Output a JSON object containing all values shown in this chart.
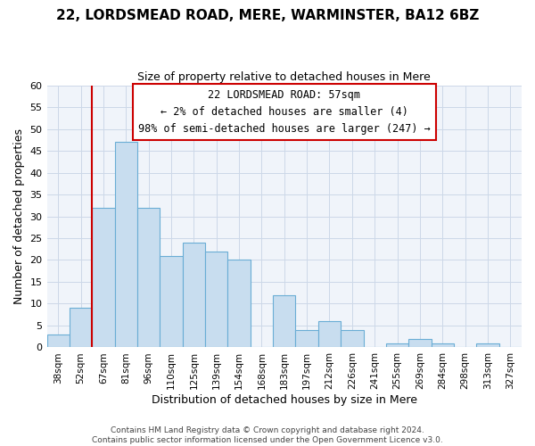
{
  "title": "22, LORDSMEAD ROAD, MERE, WARMINSTER, BA12 6BZ",
  "subtitle": "Size of property relative to detached houses in Mere",
  "xlabel": "Distribution of detached houses by size in Mere",
  "ylabel": "Number of detached properties",
  "bar_labels": [
    "38sqm",
    "52sqm",
    "67sqm",
    "81sqm",
    "96sqm",
    "110sqm",
    "125sqm",
    "139sqm",
    "154sqm",
    "168sqm",
    "183sqm",
    "197sqm",
    "212sqm",
    "226sqm",
    "241sqm",
    "255sqm",
    "269sqm",
    "284sqm",
    "298sqm",
    "313sqm",
    "327sqm"
  ],
  "bar_values": [
    3,
    9,
    32,
    47,
    32,
    21,
    24,
    22,
    20,
    0,
    12,
    4,
    6,
    4,
    0,
    1,
    2,
    1,
    0,
    1,
    0
  ],
  "bar_color": "#c8ddef",
  "bar_edge_color": "#6aadd5",
  "ylim": [
    0,
    60
  ],
  "yticks": [
    0,
    5,
    10,
    15,
    20,
    25,
    30,
    35,
    40,
    45,
    50,
    55,
    60
  ],
  "grid_color": "#ccd8e8",
  "vline_x_index": 1,
  "vline_color": "#cc0000",
  "annotation_line1": "22 LORDSMEAD ROAD: 57sqm",
  "annotation_line2": "← 2% of detached houses are smaller (4)",
  "annotation_line3": "98% of semi-detached houses are larger (247) →",
  "annotation_box_color": "#ffffff",
  "annotation_box_edge_color": "#cc0000",
  "footer_line1": "Contains HM Land Registry data © Crown copyright and database right 2024.",
  "footer_line2": "Contains public sector information licensed under the Open Government Licence v3.0.",
  "bg_color": "#f0f4fa"
}
